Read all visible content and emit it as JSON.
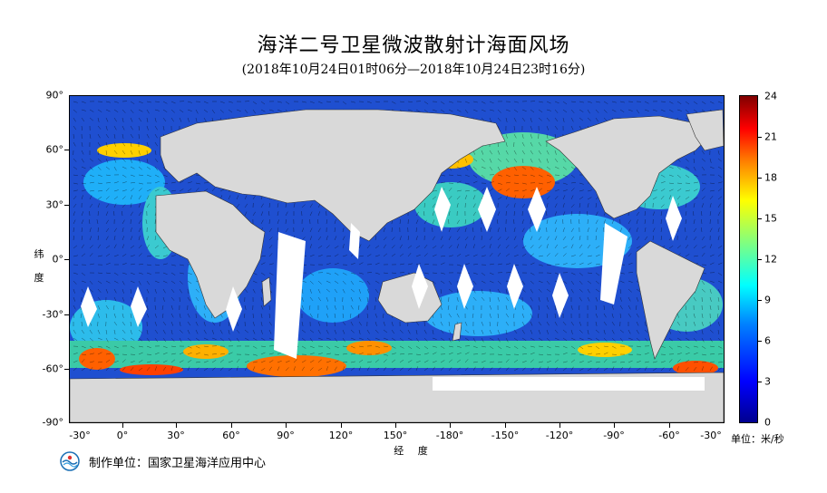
{
  "map": {
    "title": "海洋二号卫星微波散射计海面风场",
    "subtitle": "(2018年10月24日01时06分—2018年10月24日23时16分)",
    "ylabel": "纬 度",
    "xlabel": "经 度",
    "lat_ticks": [
      "90°",
      "60°",
      "30°",
      "0°",
      "-30°",
      "-60°",
      "-90°"
    ],
    "lon_ticks": [
      "-30°",
      "0°",
      "30°",
      "60°",
      "90°",
      "120°",
      "150°",
      "-180°",
      "-150°",
      "-120°",
      "-90°",
      "-60°",
      "-30°"
    ],
    "projection": "equirectangular",
    "lon_range": [
      -40,
      325
    ],
    "lat_range": [
      -90,
      90
    ]
  },
  "colorbar": {
    "ticks": [
      "24",
      "21",
      "18",
      "15",
      "12",
      "9",
      "6",
      "3",
      "0"
    ],
    "range": [
      0,
      24
    ],
    "colormap": "jet",
    "unit": "单位：米/秒",
    "colors": [
      "#00008f",
      "#0000ff",
      "#0080ff",
      "#00ffff",
      "#80ff80",
      "#ffff00",
      "#ff8000",
      "#ff0000",
      "#800000"
    ]
  },
  "footer": {
    "producer": "制作单位：国家卫星海洋应用中心"
  },
  "colors": {
    "land": "#d9d9d9",
    "ocean_background": "#1f4fd0",
    "no_data": "#ffffff",
    "coast": "#333333"
  }
}
